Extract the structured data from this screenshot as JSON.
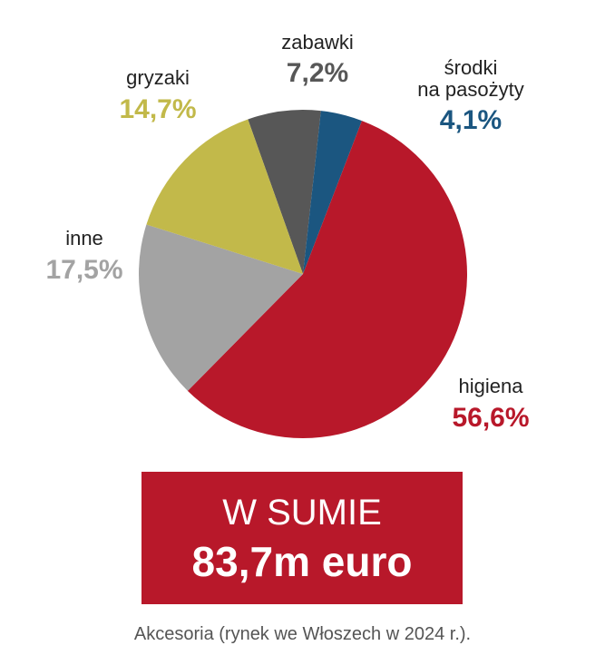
{
  "chart_data": {
    "type": "pie",
    "slices": [
      {
        "label": [
          "zabawki"
        ],
        "value": 7.2,
        "value_label": "7,2%",
        "color": "#575757"
      },
      {
        "label": [
          "środki",
          "na pasożyty"
        ],
        "value": 4.1,
        "value_label": "4,1%",
        "color": "#1b5680"
      },
      {
        "label": [
          "higiena"
        ],
        "value": 56.6,
        "value_label": "56,6%",
        "color": "#b8182a"
      },
      {
        "label": [
          "inne"
        ],
        "value": 17.5,
        "value_label": "17,5%",
        "color": "#a3a3a3"
      },
      {
        "label": [
          "gryzaki"
        ],
        "value": 14.7,
        "value_label": "14,7%",
        "color": "#c2b94a"
      }
    ]
  },
  "total": {
    "heading": "W SUMIE",
    "value": "83,7m euro"
  },
  "caption": "Akcesoria (rynek we Włoszech w 2024 r.)."
}
